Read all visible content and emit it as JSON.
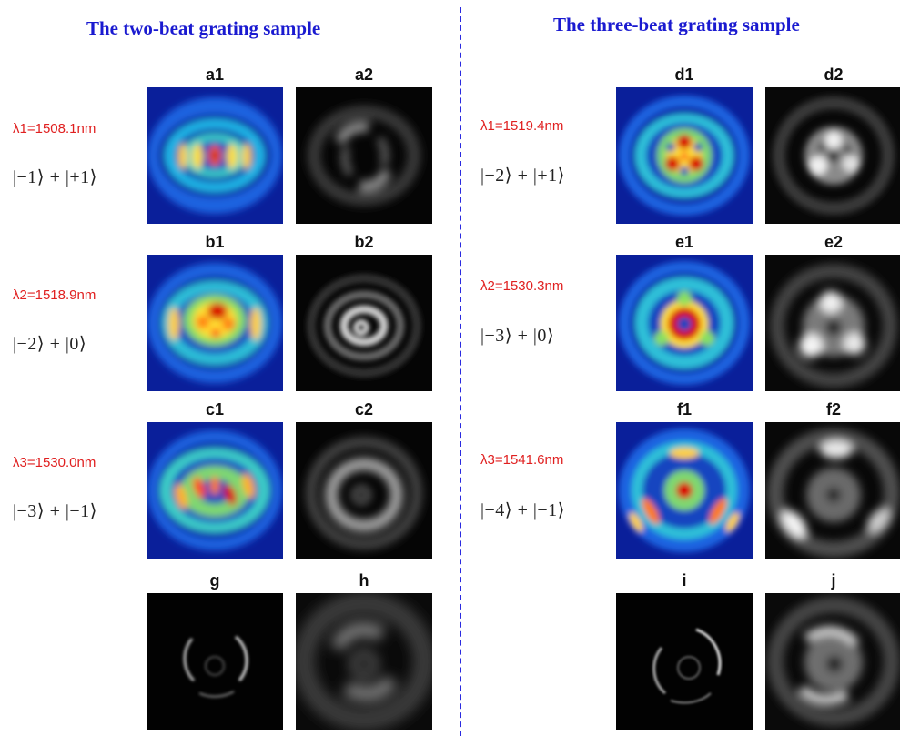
{
  "titles": {
    "left": "The two-beat grating sample",
    "right": "The three-beat grating sample"
  },
  "panels": {
    "a1": "a1",
    "a2": "a2",
    "b1": "b1",
    "b2": "b2",
    "c1": "c1",
    "c2": "c2",
    "g": "g",
    "h": "h",
    "d1": "d1",
    "d2": "d2",
    "e1": "e1",
    "e2": "e2",
    "f1": "f1",
    "f2": "f2",
    "i": "i",
    "j": "j"
  },
  "rows": {
    "left": [
      {
        "wavelength": "λ1=1508.1nm",
        "state": "|−1⟩ + |+1⟩"
      },
      {
        "wavelength": "λ2=1518.9nm",
        "state": "|−2⟩ + |0⟩"
      },
      {
        "wavelength": "λ3=1530.0nm",
        "state": "|−3⟩ + |−1⟩"
      }
    ],
    "right": [
      {
        "wavelength": "λ1=1519.4nm",
        "state": "|−2⟩ + |+1⟩"
      },
      {
        "wavelength": "λ2=1530.3nm",
        "state": "|−3⟩ + |0⟩"
      },
      {
        "wavelength": "λ3=1541.6nm",
        "state": "|−4⟩ + |−1⟩"
      }
    ]
  },
  "colors": {
    "title": "#1a1ad0",
    "wavelength": "#e02020",
    "divider": "#2a2ae0"
  }
}
